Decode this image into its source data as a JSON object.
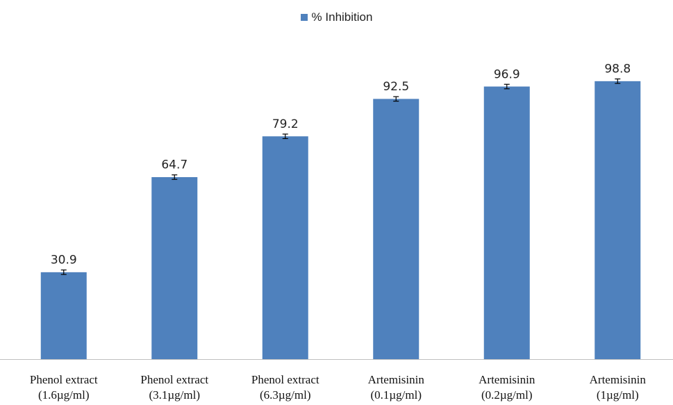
{
  "chart_data": {
    "type": "bar",
    "title": "",
    "xlabel": "",
    "ylabel": "",
    "ylim": [
      0,
      100
    ],
    "grid": false,
    "legend_position": "top-center",
    "categories": [
      [
        "Phenol extract",
        "(1.6µg/ml)"
      ],
      [
        "Phenol extract",
        "(3.1µg/ml)"
      ],
      [
        "Phenol extract",
        "(6.3µg/ml)"
      ],
      [
        "Artemisinin",
        "(0.1µg/ml)"
      ],
      [
        "Artemisinin",
        "(0.2µg/ml)"
      ],
      [
        "Artemisinin",
        "(1µg/ml)"
      ]
    ],
    "series": [
      {
        "name": "% Inhibition",
        "color": "#4f81bd",
        "values": [
          30.9,
          64.7,
          79.2,
          92.5,
          96.9,
          98.8
        ],
        "error": [
          0.8,
          0.8,
          0.8,
          0.8,
          0.8,
          0.8
        ],
        "data_labels": [
          "30.9",
          "64.7",
          "79.2",
          "92.5",
          "96.9",
          "98.8"
        ]
      }
    ]
  }
}
